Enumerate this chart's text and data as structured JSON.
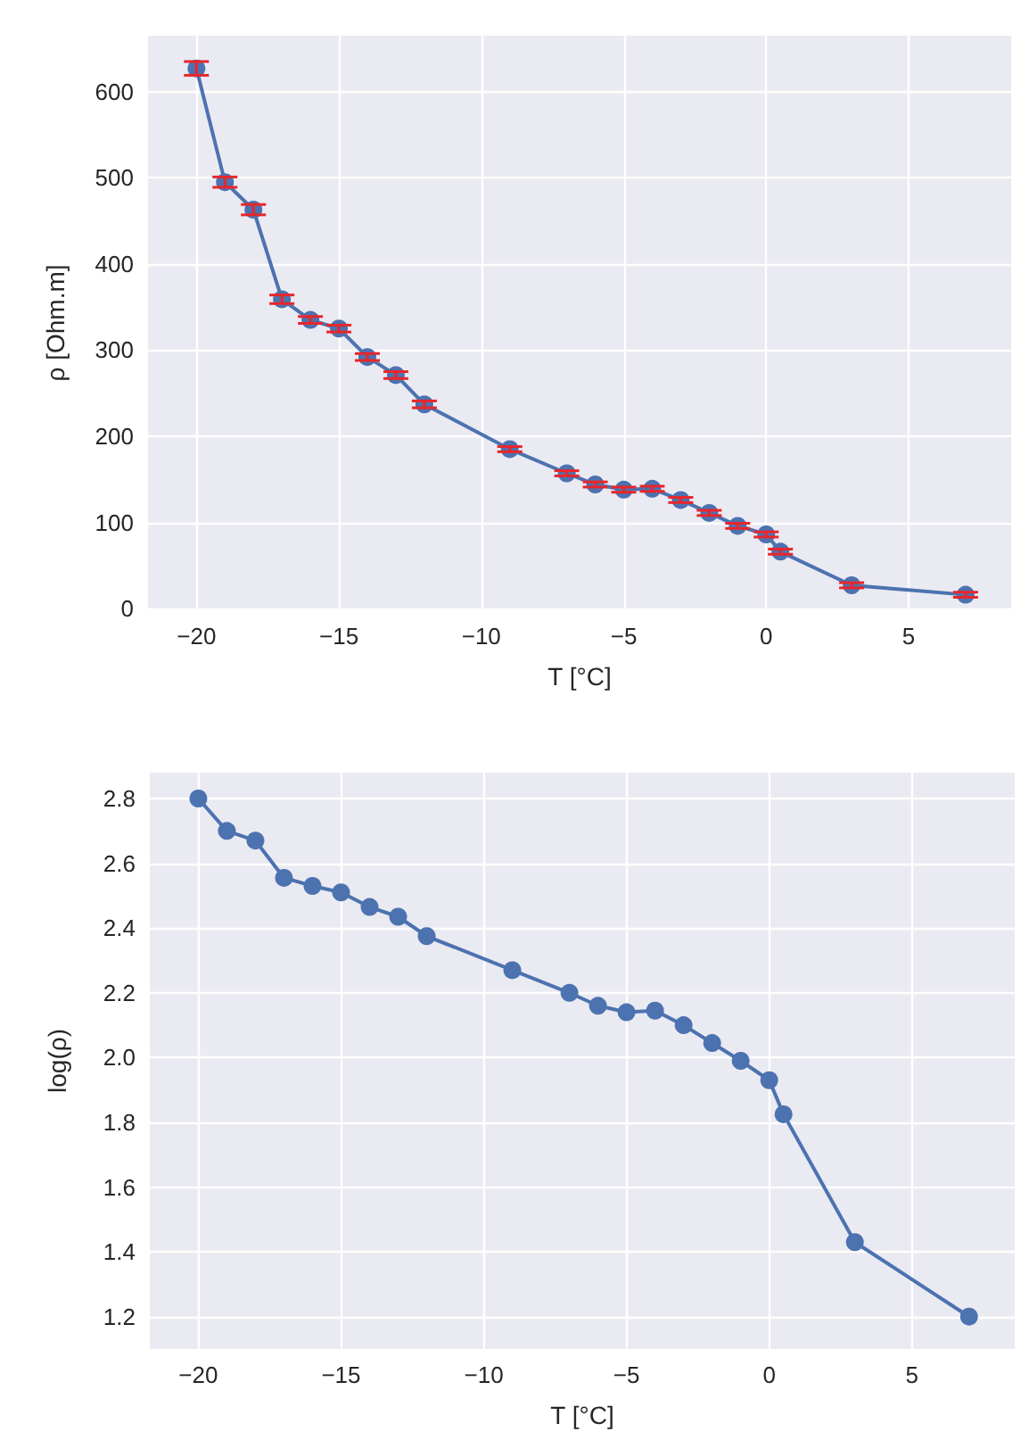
{
  "chart_data": [
    {
      "type": "line",
      "xlabel": "T [°C]",
      "ylabel": "ρ [Ohm.m]",
      "x": [
        -20,
        -19,
        -18,
        -17,
        -16,
        -15,
        -14,
        -13,
        -12,
        -9,
        -7,
        -6,
        -5,
        -4,
        -3,
        -2,
        -1,
        0,
        0.5,
        3,
        7
      ],
      "series": [
        {
          "color": "#4c72b0",
          "values": [
            627,
            495,
            463,
            359,
            335,
            325,
            292,
            271,
            237,
            185,
            157,
            144,
            138,
            139,
            126,
            111,
            96,
            86,
            66,
            27,
            16
          ],
          "errors": [
            8,
            6,
            6,
            5,
            4,
            4,
            4,
            4,
            4,
            3,
            3,
            3,
            3,
            3,
            3,
            3,
            3,
            3,
            3,
            3,
            3
          ]
        }
      ],
      "xlim": [
        -21.7,
        8.6
      ],
      "ylim": [
        -2,
        665
      ],
      "xticks": [
        -20,
        -15,
        -10,
        -5,
        0,
        5
      ],
      "yticks": [
        0,
        100,
        200,
        300,
        400,
        500,
        600
      ],
      "grid": true,
      "marker": "circle",
      "line_style": "solid"
    },
    {
      "type": "line",
      "xlabel": "T [°C]",
      "ylabel": "log(ρ)",
      "x": [
        -20,
        -19,
        -18,
        -17,
        -16,
        -15,
        -14,
        -13,
        -12,
        -9,
        -7,
        -6,
        -5,
        -4,
        -3,
        -2,
        -1,
        0,
        0.5,
        3,
        7
      ],
      "series": [
        {
          "color": "#4c72b0",
          "values": [
            2.8,
            2.7,
            2.67,
            2.555,
            2.53,
            2.51,
            2.465,
            2.435,
            2.375,
            2.27,
            2.2,
            2.16,
            2.14,
            2.145,
            2.1,
            2.045,
            1.99,
            1.93,
            1.825,
            1.43,
            1.2
          ]
        }
      ],
      "xlim": [
        -21.7,
        8.6
      ],
      "ylim": [
        1.1,
        2.88
      ],
      "xticks": [
        -20,
        -15,
        -10,
        -5,
        0,
        5
      ],
      "yticks": [
        1.2,
        1.4,
        1.6,
        1.8,
        {
          "value": 2,
          "label": "2.0"
        },
        2.2,
        2.4,
        2.6,
        2.8
      ],
      "grid": true,
      "marker": "circle",
      "line_style": "solid"
    }
  ]
}
